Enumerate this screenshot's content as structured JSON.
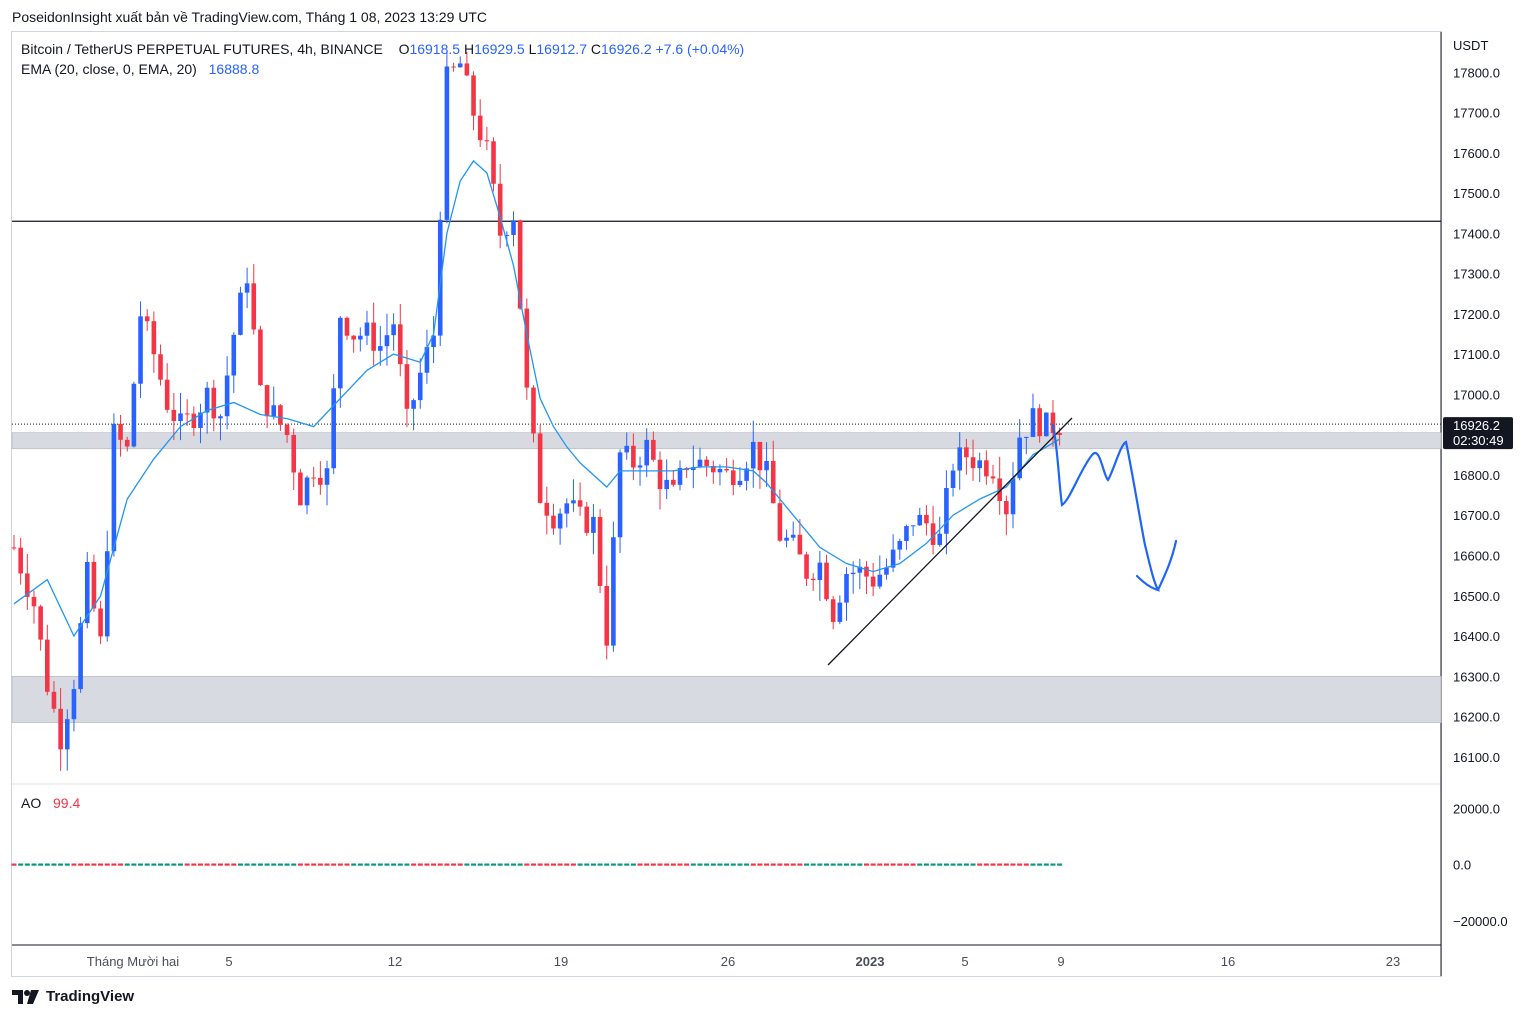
{
  "header": {
    "publish_text": "PoseidonInsight xuất bản về TradingView.com, Tháng 1 08, 2023 13:29 UTC"
  },
  "legend": {
    "symbol": "Bitcoin / TetherUS PERPETUAL FUTURES, 4h, BINANCE",
    "o_label": "O",
    "o_value": "16918.5",
    "h_label": "H",
    "h_value": "16929.5",
    "l_label": "L",
    "l_value": "16912.7",
    "c_label": "C",
    "c_value": "16926.2",
    "change": "+7.6 (+0.04%)",
    "ema_label": "EMA (20, close, 0, EMA, 20)",
    "ema_value": "16888.8",
    "ao_label": "AO",
    "ao_value": "99.4"
  },
  "footer": {
    "brand": "TradingView"
  },
  "colors": {
    "up": "#2962ff",
    "down": "#f23645",
    "ema": "#2196f3",
    "drawing": "#1e66f5",
    "zone": "#d1d4dc",
    "resistance_line": "#131722"
  },
  "chart_data": {
    "type": "candlestick",
    "timeframe": "4h",
    "quote_currency": "USDT",
    "y_axis_ticks": [
      "17800.0",
      "17700.0",
      "17600.0",
      "17500.0",
      "17400.0",
      "17300.0",
      "17200.0",
      "17100.0",
      "17000.0",
      "16900.0",
      "16800.0",
      "16700.0",
      "16600.0",
      "16500.0",
      "16400.0",
      "16300.0",
      "16200.0",
      "16100.0"
    ],
    "ylim": [
      16035,
      17900
    ],
    "x_axis_ticks": [
      {
        "label": "Tháng Mười hai",
        "bold": false
      },
      {
        "label": "5",
        "bold": false
      },
      {
        "label": "12",
        "bold": false
      },
      {
        "label": "19",
        "bold": false
      },
      {
        "label": "26",
        "bold": false
      },
      {
        "label": "2023",
        "bold": true
      },
      {
        "label": "5",
        "bold": false
      },
      {
        "label": "9",
        "bold": false
      },
      {
        "label": "16",
        "bold": false
      },
      {
        "label": "23",
        "bold": false
      }
    ],
    "last_price_label": "16926.2",
    "countdown_label": "02:30:49",
    "last_price": 16926.2,
    "resistance_level": 17430,
    "zones": [
      {
        "from": 16865,
        "to": 16905
      },
      {
        "from": 16185,
        "to": 16300
      }
    ],
    "price_path": [
      [
        0,
        16620
      ],
      [
        3,
        16480
      ],
      [
        5,
        16280
      ],
      [
        7,
        16150
      ],
      [
        9,
        16290
      ],
      [
        11,
        16550
      ],
      [
        13,
        16380
      ],
      [
        15,
        16900
      ],
      [
        17,
        16860
      ],
      [
        19,
        17200
      ],
      [
        21,
        17100
      ],
      [
        23,
        16980
      ],
      [
        25,
        16920
      ],
      [
        27,
        16950
      ],
      [
        29,
        17000
      ],
      [
        31,
        16950
      ],
      [
        33,
        17150
      ],
      [
        35,
        17300
      ],
      [
        37,
        17000
      ],
      [
        39,
        16950
      ],
      [
        41,
        16900
      ],
      [
        43,
        16750
      ],
      [
        45,
        16820
      ],
      [
        47,
        16800
      ],
      [
        49,
        17200
      ],
      [
        51,
        17150
      ],
      [
        53,
        17150
      ],
      [
        55,
        17120
      ],
      [
        57,
        17180
      ],
      [
        59,
        16930
      ],
      [
        61,
        17050
      ],
      [
        63,
        17150
      ],
      [
        65,
        17780
      ],
      [
        67,
        17820
      ],
      [
        69,
        17700
      ],
      [
        71,
        17600
      ],
      [
        73,
        17400
      ],
      [
        75,
        17450
      ],
      [
        77,
        17000
      ],
      [
        79,
        16750
      ],
      [
        81,
        16700
      ],
      [
        83,
        16730
      ],
      [
        85,
        16690
      ],
      [
        87,
        16680
      ],
      [
        89,
        16400
      ],
      [
        91,
        16850
      ],
      [
        93,
        16830
      ],
      [
        95,
        16870
      ],
      [
        97,
        16790
      ],
      [
        99,
        16750
      ],
      [
        101,
        16830
      ],
      [
        103,
        16830
      ],
      [
        105,
        16820
      ],
      [
        107,
        16800
      ],
      [
        109,
        16820
      ],
      [
        111,
        16870
      ],
      [
        113,
        16800
      ],
      [
        115,
        16650
      ],
      [
        117,
        16620
      ],
      [
        119,
        16560
      ],
      [
        121,
        16580
      ],
      [
        123,
        16460
      ],
      [
        125,
        16560
      ],
      [
        127,
        16560
      ],
      [
        129,
        16540
      ],
      [
        131,
        16570
      ],
      [
        133,
        16620
      ],
      [
        135,
        16690
      ],
      [
        137,
        16680
      ],
      [
        139,
        16640
      ],
      [
        141,
        16830
      ],
      [
        143,
        16850
      ],
      [
        145,
        16830
      ],
      [
        147,
        16820
      ],
      [
        149,
        16720
      ],
      [
        151,
        16900
      ],
      [
        153,
        16940
      ],
      [
        155,
        16920
      ],
      [
        157,
        16926
      ]
    ],
    "ema_path": [
      [
        0,
        16480
      ],
      [
        5,
        16540
      ],
      [
        9,
        16400
      ],
      [
        13,
        16500
      ],
      [
        17,
        16740
      ],
      [
        21,
        16840
      ],
      [
        25,
        16920
      ],
      [
        29,
        16960
      ],
      [
        33,
        16980
      ],
      [
        37,
        16950
      ],
      [
        41,
        16940
      ],
      [
        45,
        16920
      ],
      [
        49,
        16990
      ],
      [
        53,
        17060
      ],
      [
        57,
        17100
      ],
      [
        61,
        17080
      ],
      [
        63,
        17150
      ],
      [
        65,
        17400
      ],
      [
        67,
        17530
      ],
      [
        69,
        17580
      ],
      [
        71,
        17550
      ],
      [
        73,
        17440
      ],
      [
        75,
        17320
      ],
      [
        77,
        17150
      ],
      [
        79,
        16990
      ],
      [
        81,
        16920
      ],
      [
        83,
        16870
      ],
      [
        85,
        16830
      ],
      [
        87,
        16800
      ],
      [
        89,
        16770
      ],
      [
        91,
        16810
      ],
      [
        95,
        16810
      ],
      [
        99,
        16810
      ],
      [
        103,
        16820
      ],
      [
        107,
        16820
      ],
      [
        111,
        16810
      ],
      [
        113,
        16780
      ],
      [
        117,
        16700
      ],
      [
        121,
        16620
      ],
      [
        125,
        16580
      ],
      [
        129,
        16560
      ],
      [
        133,
        16580
      ],
      [
        137,
        16630
      ],
      [
        141,
        16700
      ],
      [
        145,
        16740
      ],
      [
        149,
        16770
      ],
      [
        153,
        16850
      ],
      [
        157,
        16889
      ]
    ],
    "ao": {
      "label": "AO",
      "value": 99.4,
      "y_axis_ticks": [
        "20000.0",
        "0.0",
        "−20000.0"
      ],
      "ylim": [
        -24000,
        24000
      ]
    }
  }
}
